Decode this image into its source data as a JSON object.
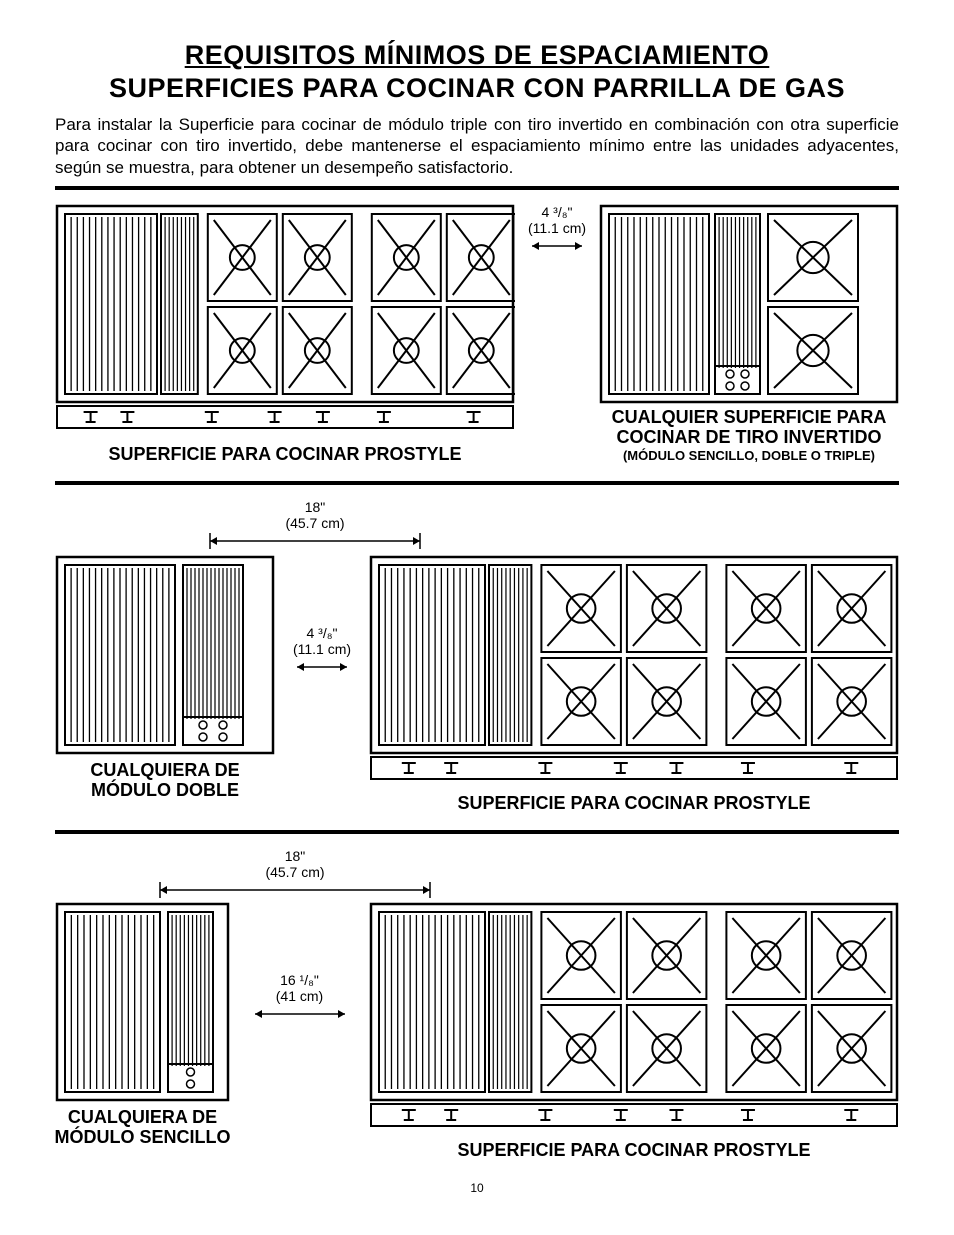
{
  "title1": "REQUISITOS MÍNIMOS DE ESPACIAMIENTO",
  "title2": "SUPERFICIES PARA COCINAR CON PARRILLA DE GAS",
  "intro": "Para instalar la Superficie para cocinar de módulo triple con tiro invertido en combinación con otra superficie para cocinar con tiro invertido, debe mantenerse el espaciamiento mínimo entre las unidades adyacentes, según se muestra, para obtener un desempeño satisfactorio.",
  "dims": {
    "d1_in": "4 ³/₈\"",
    "d1_cm": "(11.1 cm)",
    "d2_in": "18\"",
    "d2_cm": "(45.7 cm)",
    "d3_in": "16 ¹/₈\"",
    "d3_cm": "(41 cm)"
  },
  "labels": {
    "prostyle": "SUPERFICIE PARA COCINAR PROSTYLE",
    "any_downdraft": "CUALQUIER SUPERFICIE PARA COCINAR DE TIRO INVERTIDO",
    "any_downdraft_sub": "(MÓDULO SENCILLO, DOBLE O TRIPLE)",
    "double_module": "CUALQUIERA DE MÓDULO DOBLE",
    "single_module": "CUALQUIERA DE MÓDULO SENCILLO"
  },
  "page": "10",
  "style": {
    "stroke": "#000000",
    "stroke_w": 2,
    "stroke_thin": 1.2
  }
}
